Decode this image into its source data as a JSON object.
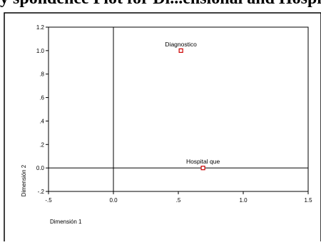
{
  "page_header_fragment": "y spondence Plot for Di...ensional and Hospital que",
  "chart_data": {
    "type": "scatter",
    "title": "",
    "xlabel": "Dimensión 1",
    "ylabel": "Dimensión 2",
    "xlim": [
      -0.5,
      1.5
    ],
    "ylim": [
      -0.2,
      1.2
    ],
    "xticks": [
      -0.5,
      0.0,
      0.5,
      1.0,
      1.5
    ],
    "xtick_labels": [
      "-.5",
      "0.0",
      ".5",
      "1.0",
      "1.5"
    ],
    "yticks": [
      -0.2,
      0.0,
      0.2,
      0.4,
      0.6,
      0.8,
      1.0,
      1.2
    ],
    "ytick_labels": [
      "-.2",
      "0.0",
      ".2",
      ".4",
      ".6",
      ".8",
      "1.0",
      "1.2"
    ],
    "reference_lines": {
      "x": 0,
      "y": 0
    },
    "grid": false,
    "marker_color": "#cc0000",
    "points": [
      {
        "label": "Diagnostico",
        "x": 0.52,
        "y": 1.0
      },
      {
        "label": "Hospital que",
        "x": 0.69,
        "y": 0.0
      }
    ]
  }
}
